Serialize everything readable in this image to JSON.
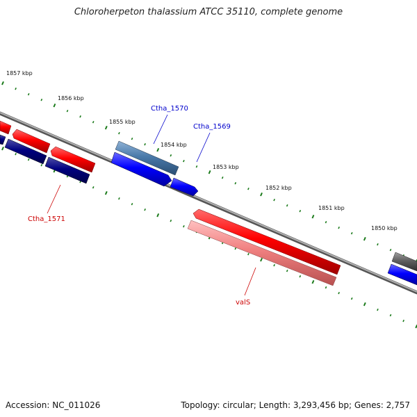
{
  "title": "Chloroherpeton thalassium ATCC 35110, complete genome",
  "footer": {
    "accession": "Accession: NC_011026",
    "summary": "Topology: circular; Length: 3,293,456 bp; Genes: 2,757"
  },
  "colors": {
    "backbone": "#808080",
    "ticks": "#1a7a1a",
    "forward_gene": "#ff0000",
    "reverse_gene": "#0000ff",
    "dark_gene": "#000080",
    "steel_gene": "#4a7aaa",
    "pink_gene": "#f08080",
    "gray_gene": "#606060",
    "label_blue": "#0000cc",
    "label_red": "#cc0000"
  },
  "ticks": {
    "kbp_labels": [
      "1857 kbp",
      "1856 kbp",
      "1855 kbp",
      "1854 kbp",
      "1853 kbp",
      "1852 kbp",
      "1851 kbp",
      "1850 kbp"
    ]
  },
  "gene_labels": {
    "ctha_1570": "Ctha_1570",
    "ctha_1569": "Ctha_1569",
    "ctha_1571": "Ctha_1571",
    "vals": "valS"
  }
}
